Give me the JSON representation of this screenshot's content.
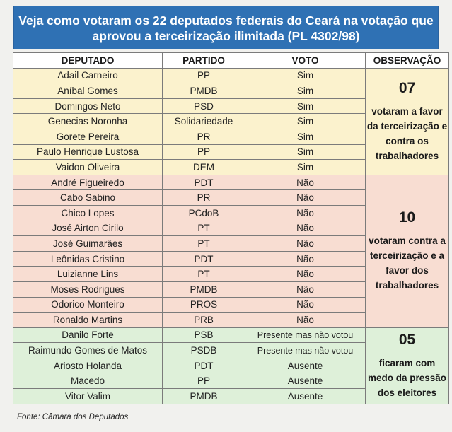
{
  "title": "Veja como votaram os 22 deputados federais do Ceará na votação que aprovou a terceirização ilimitada (PL 4302/98)",
  "headers": {
    "deputado": "DEPUTADO",
    "partido": "PARTIDO",
    "voto": "VOTO",
    "observacao": "OBSERVAÇÃO"
  },
  "groups": [
    {
      "count": "07",
      "note": "votaram a favor da terceirização e contra os trabalhadores",
      "color": "#fbf2cd",
      "rows": [
        {
          "deputado": "Adail Carneiro",
          "partido": "PP",
          "voto": "Sim"
        },
        {
          "deputado": "Aníbal Gomes",
          "partido": "PMDB",
          "voto": "Sim"
        },
        {
          "deputado": "Domingos Neto",
          "partido": "PSD",
          "voto": "Sim"
        },
        {
          "deputado": "Genecias Noronha",
          "partido": "Solidariedade",
          "voto": "Sim"
        },
        {
          "deputado": "Gorete Pereira",
          "partido": "PR",
          "voto": "Sim"
        },
        {
          "deputado": "Paulo Henrique Lustosa",
          "partido": "PP",
          "voto": "Sim"
        },
        {
          "deputado": "Vaidon Oliveira",
          "partido": "DEM",
          "voto": "Sim"
        }
      ]
    },
    {
      "count": "10",
      "note": "votaram contra a terceirização e a favor dos trabalhadores",
      "color": "#f8ddd2",
      "rows": [
        {
          "deputado": "André Figueiredo",
          "partido": "PDT",
          "voto": "Não"
        },
        {
          "deputado": "Cabo Sabino",
          "partido": "PR",
          "voto": "Não"
        },
        {
          "deputado": "Chico Lopes",
          "partido": "PCdoB",
          "voto": "Não"
        },
        {
          "deputado": "José Airton Cirilo",
          "partido": "PT",
          "voto": "Não"
        },
        {
          "deputado": "José Guimarães",
          "partido": "PT",
          "voto": "Não"
        },
        {
          "deputado": "Leônidas Cristino",
          "partido": "PDT",
          "voto": "Não"
        },
        {
          "deputado": "Luizianne Lins",
          "partido": "PT",
          "voto": "Não"
        },
        {
          "deputado": "Moses Rodrigues",
          "partido": "PMDB",
          "voto": "Não"
        },
        {
          "deputado": "Odorico Monteiro",
          "partido": "PROS",
          "voto": "Não"
        },
        {
          "deputado": "Ronaldo Martins",
          "partido": "PRB",
          "voto": "Não"
        }
      ]
    },
    {
      "count": "05",
      "note": "ficaram com medo da pressão dos eleitores",
      "color": "#def0d9",
      "rows": [
        {
          "deputado": "Danilo Forte",
          "partido": "PSB",
          "voto": "Presente mas não votou"
        },
        {
          "deputado": "Raimundo Gomes de Matos",
          "partido": "PSDB",
          "voto": "Presente mas não votou"
        },
        {
          "deputado": "Ariosto Holanda",
          "partido": "PDT",
          "voto": "Ausente"
        },
        {
          "deputado": "Macedo",
          "partido": "PP",
          "voto": "Ausente"
        },
        {
          "deputado": "Vitor Valim",
          "partido": "PMDB",
          "voto": "Ausente"
        }
      ]
    }
  ],
  "fonte": "Fonte: Câmara dos Deputados"
}
